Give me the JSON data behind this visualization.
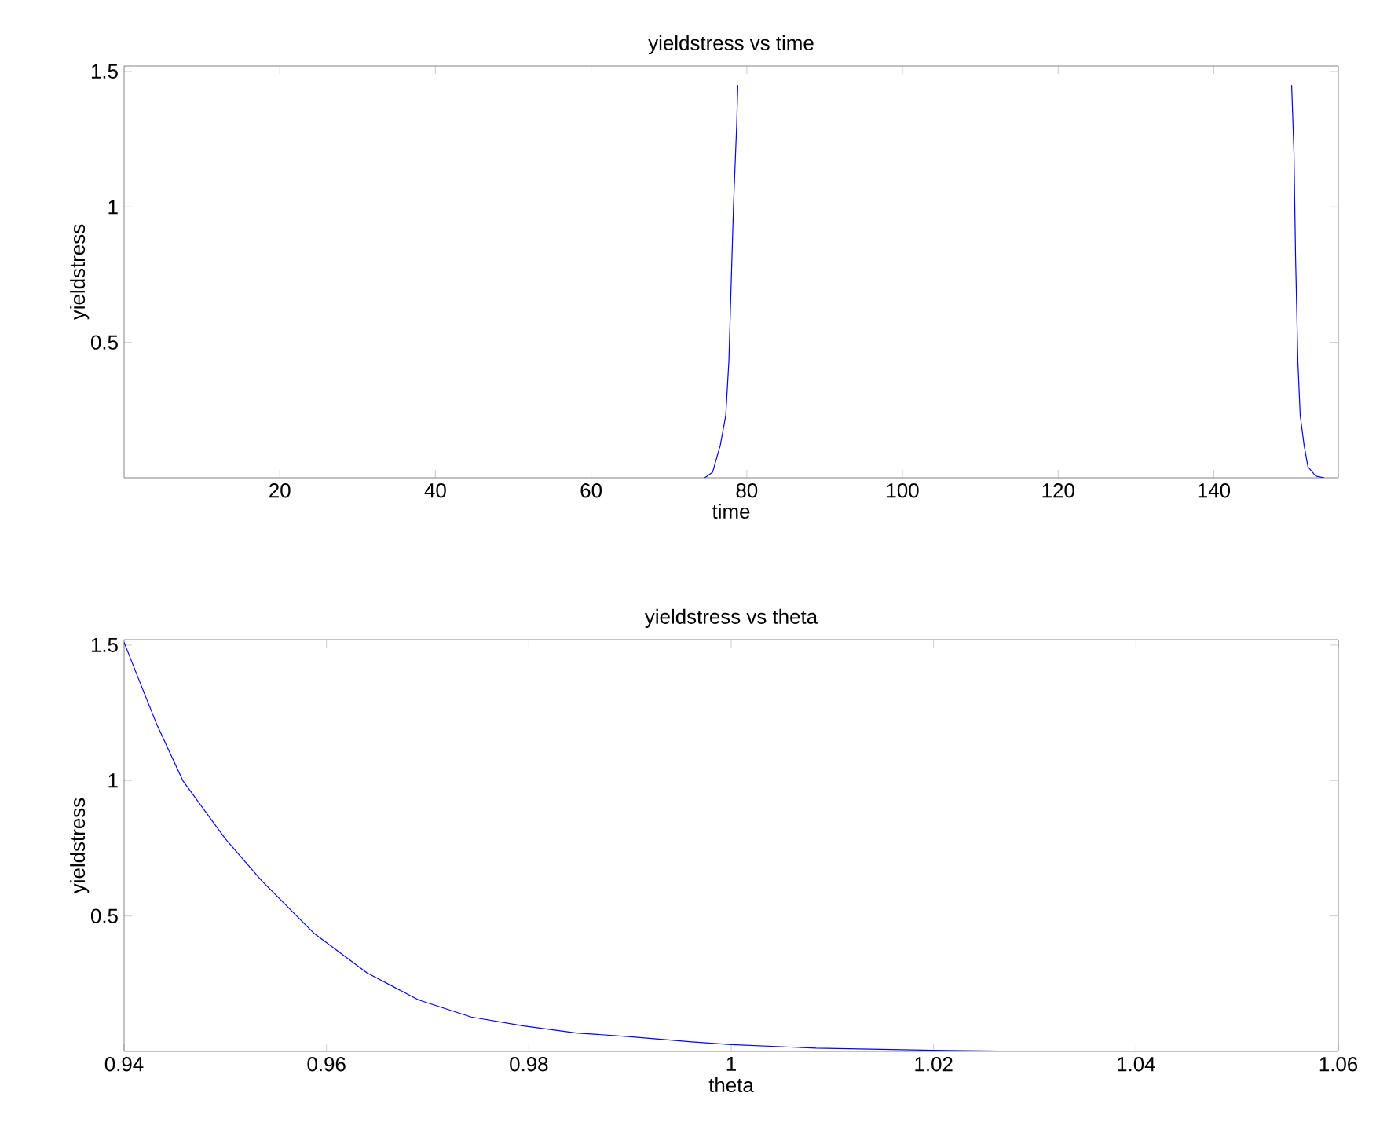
{
  "chart_data": [
    {
      "type": "line",
      "title": "yieldstress vs time",
      "xlabel": "time",
      "ylabel": "yieldstress",
      "color": "#0000ff",
      "marker": "none",
      "line_style": "solid",
      "grid": false,
      "x": [
        74.6,
        75.6,
        76.6,
        77.3,
        77.7,
        78.0,
        78.3,
        78.7,
        78.85,
        115,
        150.0,
        150.3,
        150.5,
        150.8,
        151.1,
        151.6,
        152.1,
        153.1,
        154.2
      ],
      "values": [
        0,
        0.02,
        0.12,
        0.23,
        0.43,
        0.72,
        1.01,
        1.3,
        1.45,
        null,
        1.45,
        1.2,
        0.82,
        0.43,
        0.23,
        0.12,
        0.04,
        0.006,
        0
      ],
      "xlim": [
        0,
        156
      ],
      "ylim": [
        0,
        1.52
      ],
      "xticks": [
        20,
        40,
        60,
        80,
        100,
        120,
        140
      ],
      "yticks": [
        0.5,
        1,
        1.5
      ]
    },
    {
      "type": "line",
      "title": "yieldstress vs theta",
      "xlabel": "theta",
      "ylabel": "yieldstress",
      "color": "#0000ff",
      "marker": "none",
      "line_style": "solid",
      "grid": false,
      "x": [
        0.94,
        0.9417,
        0.9432,
        0.9458,
        0.95,
        0.9536,
        0.9588,
        0.964,
        0.9691,
        0.9743,
        0.9795,
        0.9847,
        0.9898,
        0.9961,
        1.0,
        1.0084,
        1.02,
        1.029
      ],
      "values": [
        1.51,
        1.35,
        1.21,
        1.0,
        0.785,
        0.63,
        0.435,
        0.29,
        0.19,
        0.127,
        0.094,
        0.068,
        0.055,
        0.035,
        0.025,
        0.012,
        0.004,
        0
      ],
      "xlim": [
        0.94,
        1.06
      ],
      "ylim": [
        0,
        1.52
      ],
      "xticks": [
        0.94,
        0.96,
        0.98,
        1,
        1.02,
        1.04,
        1.06
      ],
      "yticks": [
        0.5,
        1,
        1.5
      ]
    }
  ]
}
